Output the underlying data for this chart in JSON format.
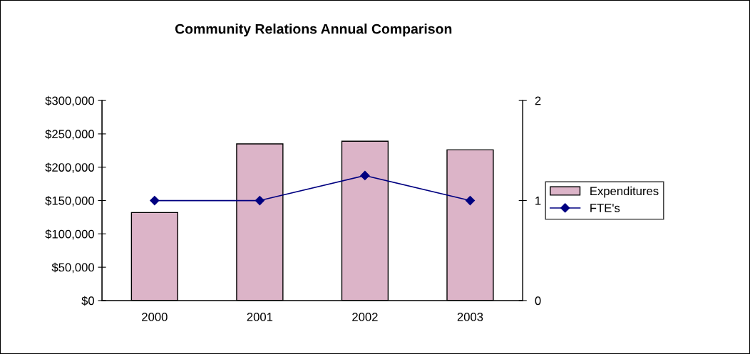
{
  "chart_data": {
    "type": "bar",
    "title": "Community Relations Annual Comparison",
    "categories": [
      "2000",
      "2001",
      "2002",
      "2003"
    ],
    "series": [
      {
        "name": "Expenditures",
        "color": "#dcb4c8",
        "values": [
          132000,
          235000,
          239000,
          226000
        ]
      },
      {
        "name": "FTE's",
        "type": "line",
        "axis": "y2",
        "color": "#000080",
        "marker": "diamond",
        "line_style": "solid",
        "values": [
          1,
          1,
          1.25,
          1
        ]
      }
    ],
    "ylim": [
      0,
      300000
    ],
    "yticks": [
      {
        "value": 0,
        "label": "$0"
      },
      {
        "value": 50000,
        "label": "$50,000"
      },
      {
        "value": 100000,
        "label": "$100,000"
      },
      {
        "value": 150000,
        "label": "$150,000"
      },
      {
        "value": 200000,
        "label": "$200,000"
      },
      {
        "value": 250000,
        "label": "$250,000"
      },
      {
        "value": 300000,
        "label": "$300,000"
      }
    ],
    "y2lim": [
      0,
      2
    ],
    "y2ticks": [
      0,
      1,
      2
    ],
    "grid": false,
    "legend": "right"
  }
}
